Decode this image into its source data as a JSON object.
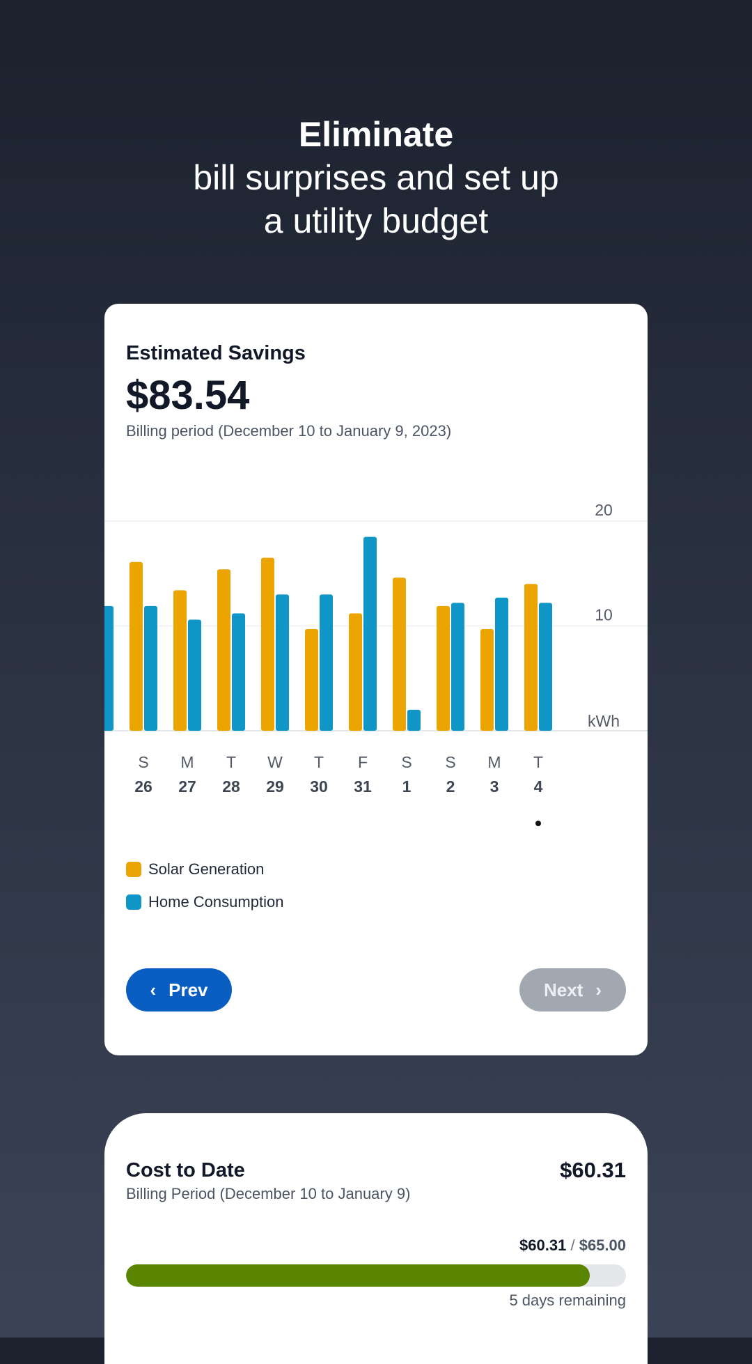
{
  "hero": {
    "line1": "Eliminate",
    "line2": "bill surprises and set up",
    "line3": "a utility budget"
  },
  "savings_card": {
    "title": "Estimated Savings",
    "amount": "$83.54",
    "period": "Billing period (December 10 to January 9, 2023)",
    "prev_label": "Prev",
    "next_label": "Next",
    "prev_color": "#0a5ec2",
    "next_color": "#a1a8b1",
    "selected_day_index": 9
  },
  "chart_data": {
    "type": "bar",
    "ylabel": "kWh",
    "ylim": [
      0,
      20
    ],
    "yticks": [
      "20",
      "10"
    ],
    "grid": true,
    "categories": [
      {
        "dow": "S",
        "day": "26"
      },
      {
        "dow": "M",
        "day": "27"
      },
      {
        "dow": "T",
        "day": "28"
      },
      {
        "dow": "W",
        "day": "29"
      },
      {
        "dow": "T",
        "day": "30"
      },
      {
        "dow": "F",
        "day": "31"
      },
      {
        "dow": "S",
        "day": "1"
      },
      {
        "dow": "S",
        "day": "2"
      },
      {
        "dow": "M",
        "day": "3"
      },
      {
        "dow": "T",
        "day": "4"
      }
    ],
    "partial_previous": {
      "home": 11.9
    },
    "series": [
      {
        "name": "Solar Generation",
        "color": "#eba400",
        "values": [
          16.1,
          13.4,
          15.4,
          16.5,
          9.7,
          11.2,
          14.6,
          11.9,
          9.7,
          14.0
        ]
      },
      {
        "name": "Home Consumption",
        "color": "#0f96c6",
        "values": [
          11.9,
          10.6,
          11.2,
          13.0,
          13.0,
          18.5,
          2.0,
          12.2,
          12.7,
          12.2
        ]
      }
    ],
    "legend": "bottom-left"
  },
  "cost_card": {
    "title": "Cost to Date",
    "amount": "$60.31",
    "period": "Billing Period (December 10 to January 9)",
    "spent": "$60.31",
    "separator": "/",
    "budget": "$65.00",
    "progress": 0.928,
    "progress_color": "#5a8500",
    "remaining": "5 days remaining"
  }
}
